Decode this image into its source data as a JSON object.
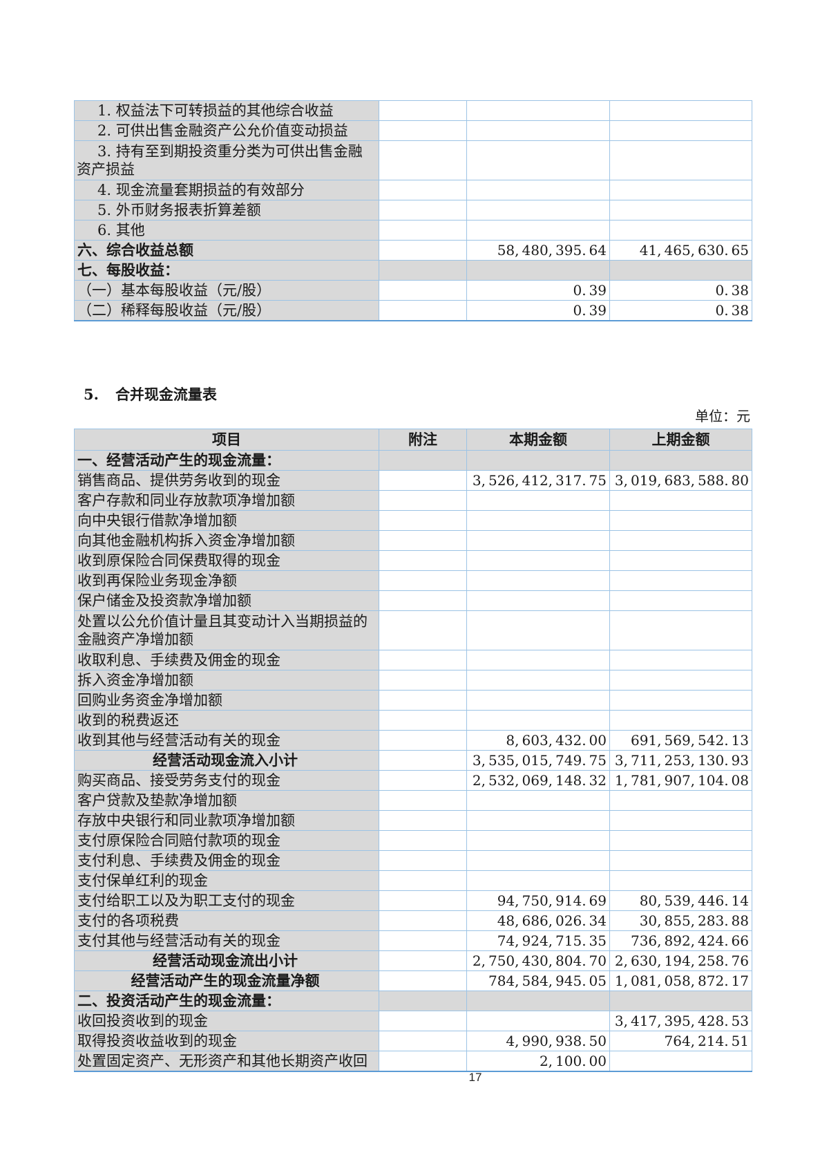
{
  "page": {
    "number": "17"
  },
  "section": {
    "number": "5.",
    "title": "合并现金流量表",
    "unit_label": "单位：元"
  },
  "colors": {
    "cell_fill": "#D9D9D9",
    "grid_border": "#9CC3E5",
    "table_bottom_border": "#5B9BD5"
  },
  "income_statement_table": {
    "rows": [
      {
        "label": "1. 权益法下可转损益的其他综合收益",
        "note": "",
        "current": "",
        "previous": "",
        "style": "sub"
      },
      {
        "label": "2. 可供出售金融资产公允价值变动损益",
        "note": "",
        "current": "",
        "previous": "",
        "style": "sub"
      },
      {
        "label": "3. 持有至到期投资重分类为可供出售金融资产损益",
        "note": "",
        "current": "",
        "previous": "",
        "style": "sub",
        "tall": true
      },
      {
        "label": "4. 现金流量套期损益的有效部分",
        "note": "",
        "current": "",
        "previous": "",
        "style": "sub"
      },
      {
        "label": "5. 外币财务报表折算差额",
        "note": "",
        "current": "",
        "previous": "",
        "style": "sub"
      },
      {
        "label": "6. 其他",
        "note": "",
        "current": "",
        "previous": "",
        "style": "sub"
      },
      {
        "label": "六、综合收益总额",
        "note": "",
        "current": "58,480,395.64",
        "previous": "41,465,630.65",
        "style": "bold"
      },
      {
        "label": "七、每股收益：",
        "note": "",
        "current": "",
        "previous": "",
        "style": "section"
      },
      {
        "label": "（一）基本每股收益（元/股）",
        "note": "",
        "current": "0.39",
        "previous": "0.38",
        "style": "item"
      },
      {
        "label": "（二）稀释每股收益（元/股）",
        "note": "",
        "current": "0.39",
        "previous": "0.38",
        "style": "item"
      }
    ]
  },
  "cashflow_table": {
    "headers": [
      "项目",
      "附注",
      "本期金额",
      "上期金额"
    ],
    "rows": [
      {
        "label": "一、经营活动产生的现金流量：",
        "note": "",
        "current": "",
        "previous": "",
        "style": "section"
      },
      {
        "label": "销售商品、提供劳务收到的现金",
        "note": "",
        "current": "3,526,412,317.75",
        "previous": "3,019,683,588.80",
        "style": "item"
      },
      {
        "label": "客户存款和同业存放款项净增加额",
        "note": "",
        "current": "",
        "previous": "",
        "style": "item"
      },
      {
        "label": "向中央银行借款净增加额",
        "note": "",
        "current": "",
        "previous": "",
        "style": "item"
      },
      {
        "label": "向其他金融机构拆入资金净增加额",
        "note": "",
        "current": "",
        "previous": "",
        "style": "item"
      },
      {
        "label": "收到原保险合同保费取得的现金",
        "note": "",
        "current": "",
        "previous": "",
        "style": "item"
      },
      {
        "label": "收到再保险业务现金净额",
        "note": "",
        "current": "",
        "previous": "",
        "style": "item"
      },
      {
        "label": "保户储金及投资款净增加额",
        "note": "",
        "current": "",
        "previous": "",
        "style": "item"
      },
      {
        "label": "处置以公允价值计量且其变动计入当期损益的金融资产净增加额",
        "note": "",
        "current": "",
        "previous": "",
        "style": "item",
        "tall": true
      },
      {
        "label": "收取利息、手续费及佣金的现金",
        "note": "",
        "current": "",
        "previous": "",
        "style": "item"
      },
      {
        "label": "拆入资金净增加额",
        "note": "",
        "current": "",
        "previous": "",
        "style": "item"
      },
      {
        "label": "回购业务资金净增加额",
        "note": "",
        "current": "",
        "previous": "",
        "style": "item"
      },
      {
        "label": "收到的税费返还",
        "note": "",
        "current": "",
        "previous": "",
        "style": "item"
      },
      {
        "label": "收到其他与经营活动有关的现金",
        "note": "",
        "current": "8,603,432.00",
        "previous": "691,569,542.13",
        "style": "item"
      },
      {
        "label": "经营活动现金流入小计",
        "note": "",
        "current": "3,535,015,749.75",
        "previous": "3,711,253,130.93",
        "style": "subtotal"
      },
      {
        "label": "购买商品、接受劳务支付的现金",
        "note": "",
        "current": "2,532,069,148.32",
        "previous": "1,781,907,104.08",
        "style": "item"
      },
      {
        "label": "客户贷款及垫款净增加额",
        "note": "",
        "current": "",
        "previous": "",
        "style": "item"
      },
      {
        "label": "存放中央银行和同业款项净增加额",
        "note": "",
        "current": "",
        "previous": "",
        "style": "item"
      },
      {
        "label": "支付原保险合同赔付款项的现金",
        "note": "",
        "current": "",
        "previous": "",
        "style": "item"
      },
      {
        "label": "支付利息、手续费及佣金的现金",
        "note": "",
        "current": "",
        "previous": "",
        "style": "item"
      },
      {
        "label": "支付保单红利的现金",
        "note": "",
        "current": "",
        "previous": "",
        "style": "item"
      },
      {
        "label": "支付给职工以及为职工支付的现金",
        "note": "",
        "current": "94,750,914.69",
        "previous": "80,539,446.14",
        "style": "item"
      },
      {
        "label": "支付的各项税费",
        "note": "",
        "current": "48,686,026.34",
        "previous": "30,855,283.88",
        "style": "item"
      },
      {
        "label": "支付其他与经营活动有关的现金",
        "note": "",
        "current": "74,924,715.35",
        "previous": "736,892,424.66",
        "style": "item"
      },
      {
        "label": "经营活动现金流出小计",
        "note": "",
        "current": "2,750,430,804.70",
        "previous": "2,630,194,258.76",
        "style": "subtotal"
      },
      {
        "label": "经营活动产生的现金流量净额",
        "note": "",
        "current": "784,584,945.05",
        "previous": "1,081,058,872.17",
        "style": "subtotal"
      },
      {
        "label": "二、投资活动产生的现金流量：",
        "note": "",
        "current": "",
        "previous": "",
        "style": "section"
      },
      {
        "label": "收回投资收到的现金",
        "note": "",
        "current": "",
        "previous": "3,417,395,428.53",
        "style": "item"
      },
      {
        "label": "取得投资收益收到的现金",
        "note": "",
        "current": "4,990,938.50",
        "previous": "764,214.51",
        "style": "item"
      },
      {
        "label": "处置固定资产、无形资产和其他长期资产收回",
        "note": "",
        "current": "2,100.00",
        "previous": "",
        "style": "item"
      }
    ]
  }
}
